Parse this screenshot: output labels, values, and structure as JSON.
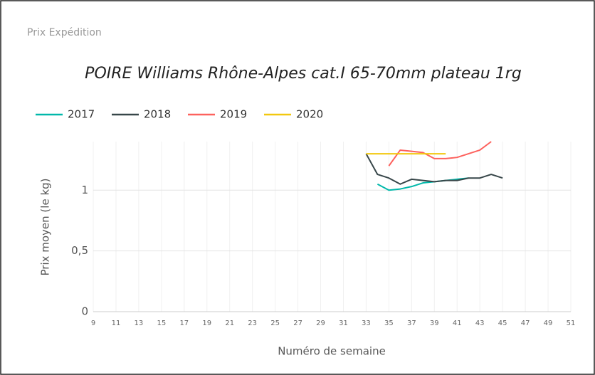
{
  "header": "Prix Expédition",
  "chart_data": {
    "type": "line",
    "title": "POIRE Williams Rhône-Alpes cat.I 65-70mm plateau 1rg",
    "x_label": "Numéro de semaine",
    "y_label": "Prix moyen  (le kg)",
    "x": [
      33,
      34,
      35,
      36,
      37,
      38,
      39,
      40,
      41,
      42,
      43,
      44,
      45
    ],
    "series": [
      {
        "name": "2017",
        "color": "#01B8AA",
        "values": [
          null,
          1.05,
          1.0,
          1.01,
          1.03,
          1.06,
          1.07,
          1.08,
          1.09,
          1.1,
          null,
          null,
          null
        ]
      },
      {
        "name": "2018",
        "color": "#374649",
        "values": [
          1.3,
          1.13,
          1.1,
          1.05,
          1.09,
          1.08,
          1.07,
          1.08,
          1.08,
          1.1,
          1.1,
          1.13,
          1.1
        ]
      },
      {
        "name": "2019",
        "color": "#FD625E",
        "values": [
          null,
          null,
          1.2,
          1.33,
          1.32,
          1.31,
          1.26,
          1.26,
          1.27,
          1.3,
          1.33,
          1.4,
          null
        ]
      },
      {
        "name": "2020",
        "color": "#F2C80F",
        "values": [
          1.3,
          1.3,
          1.3,
          1.3,
          1.3,
          1.3,
          1.3,
          1.3,
          null,
          null,
          null,
          null,
          null
        ]
      }
    ],
    "xlim": [
      9,
      51
    ],
    "xticks": [
      9,
      11,
      13,
      15,
      17,
      19,
      21,
      23,
      25,
      27,
      29,
      31,
      33,
      35,
      37,
      39,
      41,
      43,
      45,
      47,
      49,
      51
    ],
    "ylim": [
      0,
      1.4
    ],
    "yticks": [
      0,
      {
        "value": 0.5,
        "label": "0,5"
      },
      1
    ],
    "grid": true,
    "legend": "top-left"
  }
}
